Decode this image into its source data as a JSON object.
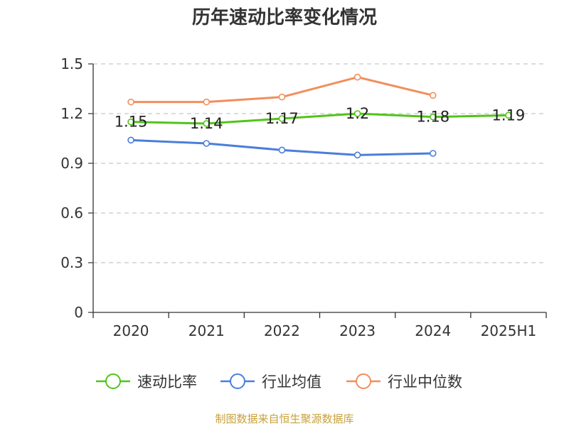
{
  "chart_data": {
    "type": "line",
    "title": "历年速动比率变化情况",
    "categories": [
      "2020",
      "2021",
      "2022",
      "2023",
      "2024",
      "2025H1"
    ],
    "ylim": [
      0,
      1.5
    ],
    "yticks": [
      "0",
      "0.3",
      "0.6",
      "0.9",
      "1.2",
      "1.5"
    ],
    "ytick_values": [
      0,
      0.3,
      0.6,
      0.9,
      1.2,
      1.5
    ],
    "grid": true,
    "legend_position": "bottom",
    "series": [
      {
        "name": "速动比率",
        "color": "#52c41a",
        "values": [
          1.15,
          1.14,
          1.17,
          1.2,
          1.18,
          1.19
        ],
        "labels": [
          "1.15",
          "1.14",
          "1.17",
          "1.2",
          "1.18",
          "1.19"
        ]
      },
      {
        "name": "行业均值",
        "color": "#4a7fd9",
        "values": [
          1.04,
          1.02,
          0.98,
          0.95,
          0.96,
          null
        ]
      },
      {
        "name": "行业中位数",
        "color": "#f28e5c",
        "values": [
          1.27,
          1.27,
          1.3,
          1.42,
          1.31,
          null
        ]
      }
    ]
  },
  "source_text": "制图数据来自恒生聚源数据库"
}
